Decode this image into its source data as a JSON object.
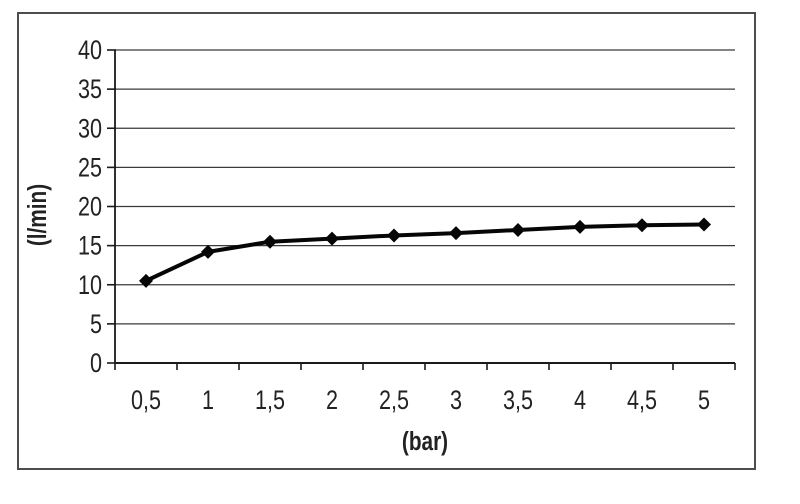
{
  "page": {
    "background": "#ffffff",
    "frame_border_color": "#4d4d4d"
  },
  "chart_data": {
    "type": "line",
    "title": "",
    "xlabel": "(bar)",
    "ylabel": "(l/min)",
    "categories": [
      "0,5",
      "1",
      "1,5",
      "2",
      "2,5",
      "3",
      "3,5",
      "4",
      "4,5",
      "5"
    ],
    "x_numeric": [
      0.5,
      1,
      1.5,
      2,
      2.5,
      3,
      3.5,
      4,
      4.5,
      5
    ],
    "values": [
      10.5,
      14.2,
      15.5,
      15.9,
      16.3,
      16.6,
      17.0,
      17.4,
      17.6,
      17.7
    ],
    "ylim": [
      0,
      40
    ],
    "ytick_step": 5,
    "yticks": [
      "0",
      "5",
      "10",
      "15",
      "20",
      "25",
      "30",
      "35",
      "40"
    ],
    "grid": true,
    "legend": false,
    "marker": "diamond",
    "line_color": "#060606",
    "marker_color": "#060606",
    "grid_color": "#3a3a3a",
    "axis_color": "#1a1a1a",
    "text_color": "#222222"
  }
}
